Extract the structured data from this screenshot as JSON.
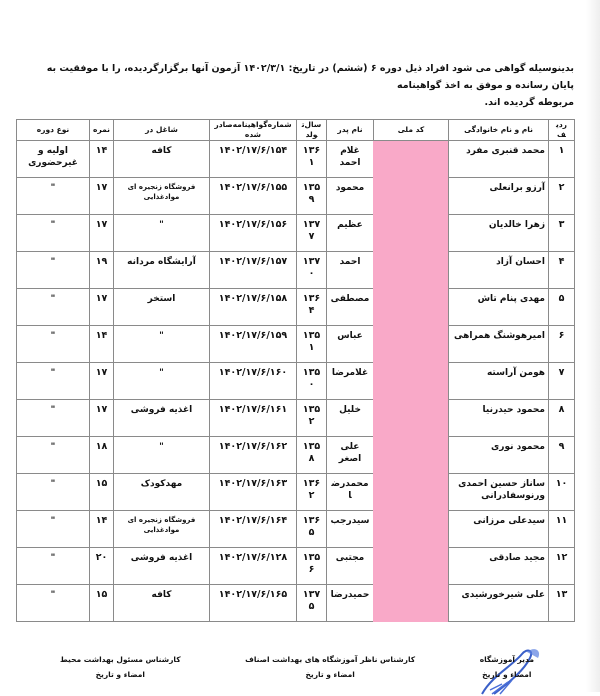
{
  "intro": {
    "line1": "بدینوسیله گواهی می شود افراد ذیل دوره ۶ (ششم)  در تاریخ: ۱۴۰۲/۳/۱ آزمون آنها برگزارگردیده، را با موفقیت به پایان رسانده و موفق به اخذ گواهینامه",
    "line2": "مربوطه گردیده اند."
  },
  "table": {
    "headers": [
      "ردیف",
      "نام و نام خانوادگی",
      "کد ملی",
      "نام پدر",
      "سال‌تولد",
      "شماره‌گواهینامه‌صادرشده",
      "شاغل در",
      "نمره",
      "نوع دوره"
    ],
    "redaction_color": "#f9a9c8",
    "rows": [
      {
        "n": "۱",
        "name": "محمد قنبری مفرد",
        "father": "غلام احمد",
        "year": "۱۳۶۱",
        "cert": "۱۴۰۲/۱۷/۶/۱۵۴",
        "job": "کافه",
        "score": "۱۴",
        "type": "اولیه و غیرحضوری"
      },
      {
        "n": "۲",
        "name": "آرزو برانعلی",
        "father": "محمود",
        "year": "۱۳۵۹",
        "cert": "۱۴۰۲/۱۷/۶/۱۵۵",
        "job": "فروشگاه زنجیره ای موادغذایی",
        "score": "۱۷",
        "type": "\""
      },
      {
        "n": "۳",
        "name": "زهرا خالدیان",
        "father": "عظیم",
        "year": "۱۳۷۷",
        "cert": "۱۴۰۲/۱۷/۶/۱۵۶",
        "job": "\"",
        "score": "۱۷",
        "type": "\""
      },
      {
        "n": "۴",
        "name": "احسان آزاد",
        "father": "احمد",
        "year": "۱۳۷۰",
        "cert": "۱۴۰۲/۱۷/۶/۱۵۷",
        "job": "آرایشگاه مردانه",
        "score": "۱۹",
        "type": "\""
      },
      {
        "n": "۵",
        "name": "مهدی پنام تاش",
        "father": "مصطفی",
        "year": "۱۳۶۴",
        "cert": "۱۴۰۲/۱۷/۶/۱۵۸",
        "job": "استخر",
        "score": "۱۷",
        "type": "\""
      },
      {
        "n": "۶",
        "name": "امیرهوشنگ همراهی",
        "father": "عباس",
        "year": "۱۳۵۱",
        "cert": "۱۴۰۲/۱۷/۶/۱۵۹",
        "job": "\"",
        "score": "۱۴",
        "type": "\""
      },
      {
        "n": "۷",
        "name": "هومن آراسته",
        "father": "غلامرضا",
        "year": "۱۳۵۰",
        "cert": "۱۴۰۲/۱۷/۶/۱۶۰",
        "job": "\"",
        "score": "۱۷",
        "type": "\""
      },
      {
        "n": "۸",
        "name": "محمود حیدرنیا",
        "father": "خلیل",
        "year": "۱۳۵۲",
        "cert": "۱۴۰۲/۱۷/۶/۱۶۱",
        "job": "اغذیه فروشی",
        "score": "۱۷",
        "type": "\""
      },
      {
        "n": "۹",
        "name": "محمود نوری",
        "father": "علی اصغر",
        "year": "۱۳۵۸",
        "cert": "۱۴۰۲/۱۷/۶/۱۶۲",
        "job": "\"",
        "score": "۱۸",
        "type": "\""
      },
      {
        "n": "۱۰",
        "name": "ساناز حسین احمدی ورنوسفادرانی",
        "father": "محمدرضا",
        "year": "۱۳۶۲",
        "cert": "۱۴۰۲/۱۷/۶/۱۶۳",
        "job": "مهدکودک",
        "score": "۱۵",
        "type": "\""
      },
      {
        "n": "۱۱",
        "name": "سیدعلی مرزانی",
        "father": "سیدرجب",
        "year": "۱۳۶۵",
        "cert": "۱۴۰۲/۱۷/۶/۱۶۴",
        "job": "فروشگاه زنجیره ای موادغذایی",
        "score": "۱۴",
        "type": "\""
      },
      {
        "n": "۱۲",
        "name": "مجید صادقی",
        "father": "مجتبی",
        "year": "۱۳۵۶",
        "cert": "۱۴۰۲/۱۷/۶/۱۲۸",
        "job": "اغذیه فروشی",
        "score": "۲۰",
        "type": "\""
      },
      {
        "n": "۱۳",
        "name": "علی شیرخورشیدی",
        "father": "حمیدرضا",
        "year": "۱۳۷۵",
        "cert": "۱۴۰۲/۱۷/۶/۱۶۵",
        "job": "کافه",
        "score": "۱۵",
        "type": "\""
      }
    ]
  },
  "signatures": {
    "left": {
      "title": "کارشناس مسئول بهداشت محیط",
      "sub": "امضاء و تاریخ"
    },
    "center": {
      "title": "کارشناس ناظر آموزشگاه های بهداشت اصناف",
      "sub": "امضاء و تاریخ"
    },
    "right": {
      "title": "مدیر آموزشگاه",
      "sub": "امضاء و تاریخ"
    }
  }
}
